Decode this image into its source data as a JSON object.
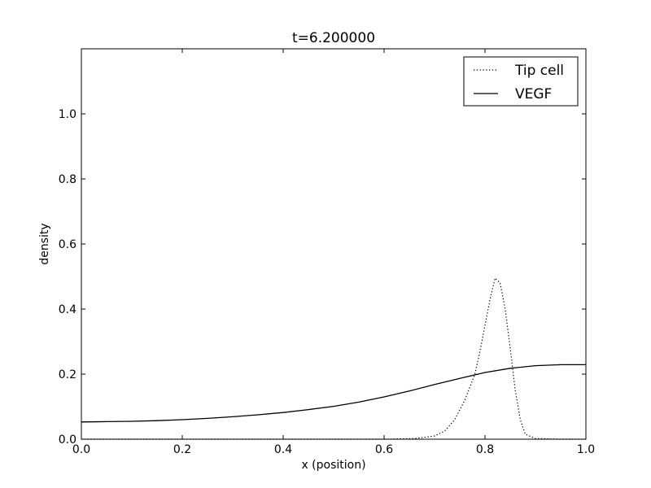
{
  "chart_data": {
    "type": "line",
    "title": "t=6.200000",
    "xlabel": "x (position)",
    "ylabel": "density",
    "xlim": [
      0,
      1
    ],
    "ylim": [
      0,
      1.2
    ],
    "xticks": [
      "0.0",
      "0.2",
      "0.4",
      "0.6",
      "0.8",
      "1.0"
    ],
    "xtick_values": [
      0,
      0.2,
      0.4,
      0.6,
      0.8,
      1.0
    ],
    "yticks": [
      "0.0",
      "0.2",
      "0.4",
      "0.6",
      "0.8",
      "1.0"
    ],
    "ytick_values": [
      0,
      0.2,
      0.4,
      0.6,
      0.8,
      1.0
    ],
    "grid": false,
    "legend_position": "top-right",
    "series": [
      {
        "name": "Tip cell",
        "style": "dotted",
        "color": "#000000",
        "x": [
          0,
          0.6,
          0.66,
          0.7,
          0.72,
          0.74,
          0.76,
          0.78,
          0.79,
          0.8,
          0.81,
          0.82,
          0.83,
          0.84,
          0.85,
          0.86,
          0.87,
          0.88,
          0.9,
          0.95,
          1.0
        ],
        "y": [
          0,
          0,
          0.002,
          0.01,
          0.025,
          0.06,
          0.12,
          0.2,
          0.27,
          0.35,
          0.43,
          0.495,
          0.48,
          0.4,
          0.28,
          0.15,
          0.06,
          0.015,
          0.002,
          0,
          0
        ]
      },
      {
        "name": "VEGF",
        "style": "solid",
        "color": "#000000",
        "x": [
          0,
          0.05,
          0.1,
          0.15,
          0.2,
          0.25,
          0.3,
          0.35,
          0.4,
          0.45,
          0.5,
          0.55,
          0.6,
          0.65,
          0.7,
          0.75,
          0.8,
          0.85,
          0.9,
          0.95,
          1.0
        ],
        "y": [
          0.053,
          0.054,
          0.055,
          0.057,
          0.06,
          0.064,
          0.069,
          0.075,
          0.082,
          0.091,
          0.101,
          0.114,
          0.13,
          0.148,
          0.168,
          0.187,
          0.205,
          0.218,
          0.226,
          0.229,
          0.229
        ]
      }
    ]
  }
}
